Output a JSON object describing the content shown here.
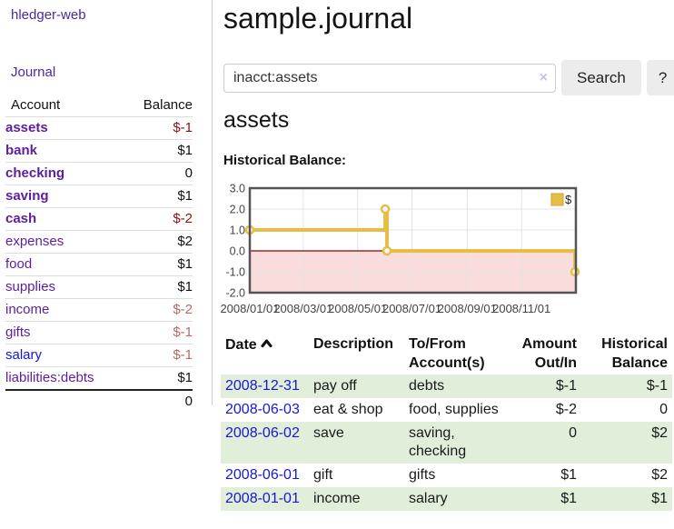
{
  "app": {
    "brand": "hledger-web",
    "nav_journal": "Journal"
  },
  "sidebar": {
    "header": {
      "account": "Account",
      "balance": "Balance"
    },
    "accounts": [
      {
        "name": "assets",
        "depth": 0,
        "bold": true,
        "link": "purple",
        "balance": "$-1"
      },
      {
        "name": "bank",
        "depth": 1,
        "bold": true,
        "link": "purple",
        "balance": "$1"
      },
      {
        "name": "checking",
        "depth": 2,
        "bold": true,
        "link": "purple",
        "balance": "0"
      },
      {
        "name": "saving",
        "depth": 2,
        "bold": true,
        "link": "purple",
        "balance": "$1"
      },
      {
        "name": "cash",
        "depth": 1,
        "bold": true,
        "link": "purple",
        "balance": "$-2"
      },
      {
        "name": "expenses",
        "depth": 0,
        "bold": false,
        "link": "purple",
        "balance": "$2"
      },
      {
        "name": "food",
        "depth": 1,
        "bold": false,
        "link": "purple",
        "balance": "$1"
      },
      {
        "name": "supplies",
        "depth": 1,
        "bold": false,
        "link": "purple",
        "balance": "$1"
      },
      {
        "name": "income",
        "depth": 0,
        "bold": false,
        "link": "purple",
        "balance": "$-2"
      },
      {
        "name": "gifts",
        "depth": 1,
        "bold": false,
        "link": "purple",
        "balance": "$-1"
      },
      {
        "name": "salary",
        "depth": 1,
        "bold": false,
        "link": "blue",
        "balance": "$-1"
      },
      {
        "name": "liabilities:debts",
        "depth": 0,
        "bold": false,
        "link": "purple",
        "balance": "$1"
      }
    ],
    "total": "0"
  },
  "header": {
    "title": "sample.journal"
  },
  "search": {
    "value": "inacct:assets",
    "clear_icon": "×",
    "button_label": "Search",
    "help_label": "?"
  },
  "account_page": {
    "title": "assets",
    "chart_label": "Historical Balance:"
  },
  "chart_data": {
    "type": "line",
    "title": "Historical Balance",
    "step": true,
    "series": [
      {
        "name": "$",
        "points": [
          {
            "x": "2008-01-01",
            "y": 1
          },
          {
            "x": "2008-06-01",
            "y": 2
          },
          {
            "x": "2008-06-03",
            "y": 0
          },
          {
            "x": "2008-12-31",
            "y": -1
          }
        ]
      }
    ],
    "x_range": [
      "2008-01-01",
      "2008-12-31"
    ],
    "ylim": [
      -2,
      3
    ],
    "y_ticks": [
      "3.0",
      "2.0",
      "1.0",
      "0.0",
      "-1.0",
      "-2.0"
    ],
    "y_tick_values": [
      3,
      2,
      1,
      0,
      -1,
      -2
    ],
    "x_ticks": [
      "2008/01/01",
      "2008/03/01",
      "2008/05/01",
      "2008/07/01",
      "2008/09/01",
      "2008/11/01"
    ],
    "x_tick_dates": [
      "2008-01-01",
      "2008-03-01",
      "2008-05-01",
      "2008-07-01",
      "2008-09-01",
      "2008-11-01"
    ],
    "legend": "$",
    "legend_position": "top-right",
    "grid": true,
    "negative_region_shaded": true
  },
  "register": {
    "columns": [
      "Date",
      "Description",
      "To/From Account(s)",
      "Amount Out/In",
      "Historical Balance"
    ],
    "sort_icon": "caret-up",
    "rows": [
      {
        "date": "2008-12-31",
        "description": "pay off",
        "accounts": "debts",
        "amount": "$-1",
        "balance": "$-1"
      },
      {
        "date": "2008-06-03",
        "description": "eat & shop",
        "accounts": "food, supplies",
        "amount": "$-2",
        "balance": "0"
      },
      {
        "date": "2008-06-02",
        "description": "save",
        "accounts": "saving, checking",
        "amount": "0",
        "balance": "$2"
      },
      {
        "date": "2008-06-01",
        "description": "gift",
        "accounts": "gifts",
        "amount": "$1",
        "balance": "$2"
      },
      {
        "date": "2008-01-01",
        "description": "income",
        "accounts": "salary",
        "amount": "$1",
        "balance": "$1"
      }
    ]
  },
  "colors": {
    "link_purple": "#4b2a9d",
    "account_purple": "#5b1f9e",
    "link_blue": "#1414dd",
    "negative_strong": "#8b1111",
    "negative_soft": "#b66a6a",
    "table_stripe_green": "#e0eeda",
    "chart_line_gold": "#e6be47",
    "chart_negative_fill": "#fadcdc",
    "chart_zero_line": "#8b0000",
    "button_gray": "#ececec"
  }
}
